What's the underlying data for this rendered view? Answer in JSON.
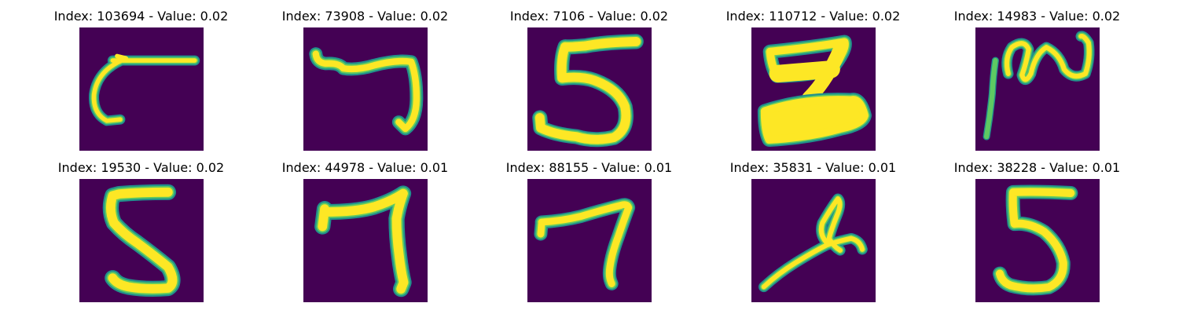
{
  "colors": {
    "background": "#440154",
    "stroke_outer": "#21918c",
    "stroke_mid": "#5ec962",
    "stroke_core": "#fde725"
  },
  "grid": [
    {
      "title": "Index: 103694 - Value: 0.02"
    },
    {
      "title": "Index: 73908 - Value: 0.02"
    },
    {
      "title": "Index: 7106 - Value: 0.02"
    },
    {
      "title": "Index: 110712 - Value: 0.02"
    },
    {
      "title": "Index: 14983 - Value: 0.02"
    },
    {
      "title": "Index: 19530 - Value: 0.02"
    },
    {
      "title": "Index: 44978 - Value: 0.01"
    },
    {
      "title": "Index: 88155 - Value: 0.01"
    },
    {
      "title": "Index: 35831 - Value: 0.01"
    },
    {
      "title": "Index: 38228 - Value: 0.01"
    }
  ]
}
